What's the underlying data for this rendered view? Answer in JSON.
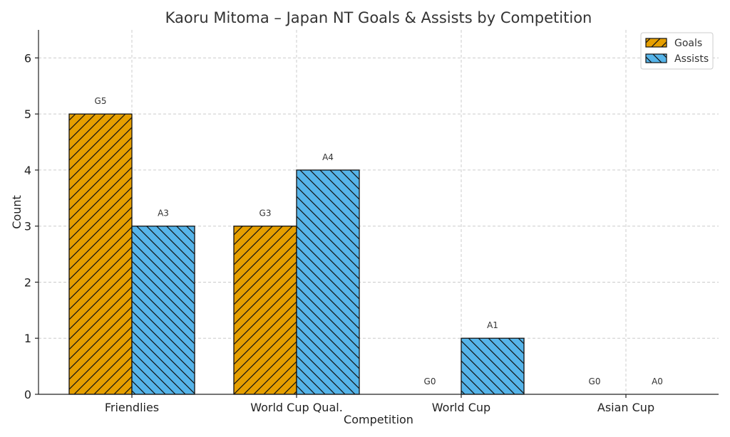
{
  "chart_data": {
    "type": "bar",
    "title": "Kaoru Mitoma – Japan NT Goals & Assists by Competition",
    "xlabel": "Competition",
    "ylabel": "Count",
    "categories": [
      "Friendlies",
      "World Cup Qual.",
      "World Cup",
      "Asian Cup"
    ],
    "series": [
      {
        "name": "Goals",
        "values": [
          5,
          3,
          0,
          0
        ],
        "labels": [
          "G5",
          "G3",
          "G0",
          "G0"
        ],
        "color": "#E69F00",
        "hatch": "forward-diagonal"
      },
      {
        "name": "Assists",
        "values": [
          3,
          4,
          1,
          0
        ],
        "labels": [
          "A3",
          "A4",
          "A1",
          "A0"
        ],
        "color": "#56B4E9",
        "hatch": "back-diagonal"
      }
    ],
    "ylim": [
      0,
      6.5
    ],
    "yticks": [
      0,
      1,
      2,
      3,
      4,
      5,
      6
    ],
    "grid": true,
    "legend_position": "top-right"
  }
}
